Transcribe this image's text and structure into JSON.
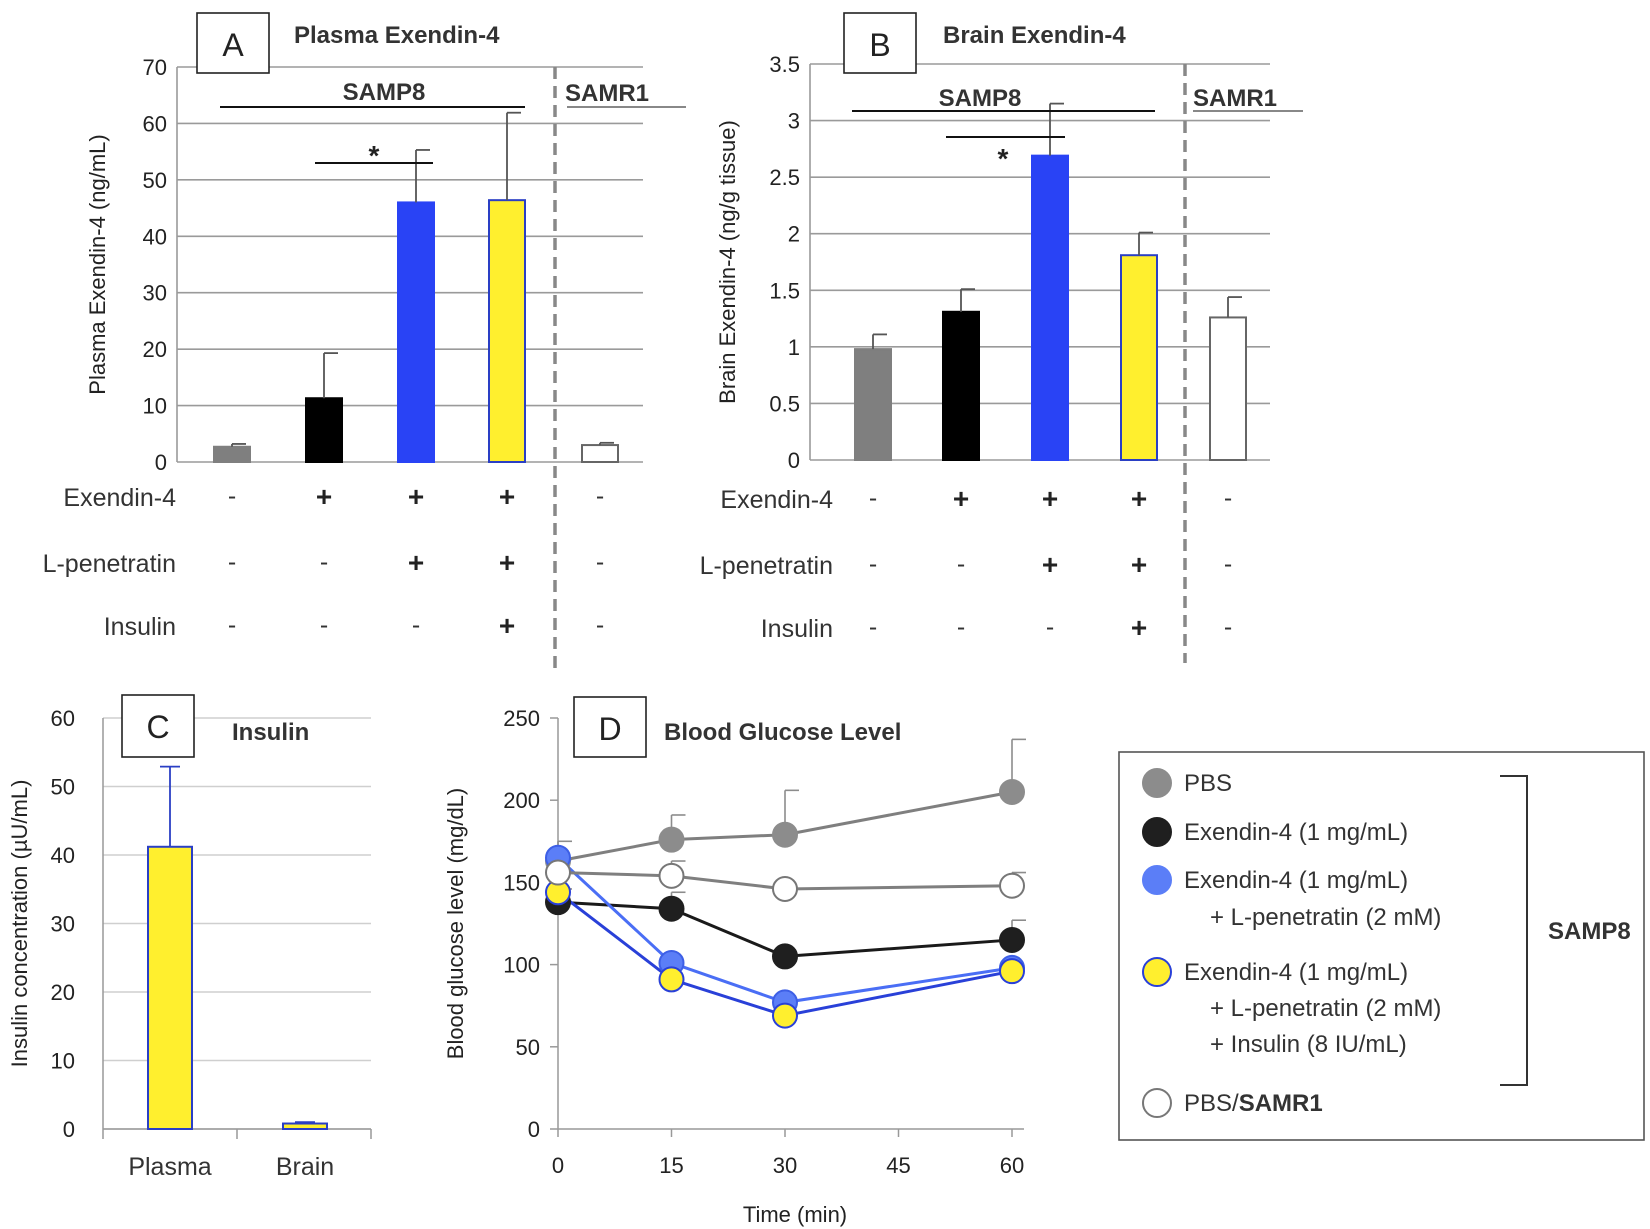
{
  "chart_data": [
    {
      "panel": "A",
      "type": "bar",
      "title": "Plasma Exendin-4",
      "ylabel": "Plasma Exendin-4 (ng/mL)",
      "ylim": [
        0,
        70
      ],
      "yticks": [
        "0",
        "10",
        "20",
        "30",
        "40",
        "50",
        "60",
        "70"
      ],
      "values": [
        2.7,
        11.3,
        46.0,
        46.4,
        3.0
      ],
      "errors": [
        0.5,
        8.0,
        9.3,
        15.5,
        0.4
      ],
      "colors": [
        "#7f7f7f",
        "#000000",
        "#2943f5",
        "#ffef2e",
        "#ffffff"
      ],
      "edge_colors": [
        "#7f7f7f",
        "#000000",
        "#2943f5",
        "#2a3fc4",
        "#666666"
      ],
      "rows": [
        {
          "label": "Exendin-4",
          "signs": [
            "-",
            "+",
            "+",
            "+",
            "-"
          ]
        },
        {
          "label": "L-penetratin",
          "signs": [
            "-",
            "-",
            "+",
            "+",
            "-"
          ]
        },
        {
          "label": "Insulin",
          "signs": [
            "-",
            "-",
            "-",
            "+",
            "-"
          ]
        }
      ],
      "group_labels": [
        "SAMP8",
        "SAMR1"
      ],
      "significance": "*"
    },
    {
      "panel": "B",
      "type": "bar",
      "title": "Brain Exendin-4",
      "ylabel": "Brain Exendin-4 (ng/g tissue)",
      "ylim": [
        0,
        3.5
      ],
      "yticks": [
        "0",
        "0.5",
        "1",
        "1.5",
        "2",
        "2.5",
        "3",
        "3.5"
      ],
      "values": [
        0.98,
        1.31,
        2.69,
        1.81,
        1.26
      ],
      "errors": [
        0.13,
        0.2,
        0.46,
        0.2,
        0.18
      ],
      "colors": [
        "#7f7f7f",
        "#000000",
        "#2943f5",
        "#ffef2e",
        "#ffffff"
      ],
      "edge_colors": [
        "#7f7f7f",
        "#000000",
        "#2943f5",
        "#2a3fc4",
        "#666666"
      ],
      "rows": [
        {
          "label": "Exendin-4",
          "signs": [
            "-",
            "+",
            "+",
            "+",
            "-"
          ]
        },
        {
          "label": "L-penetratin",
          "signs": [
            "-",
            "-",
            "+",
            "+",
            "-"
          ]
        },
        {
          "label": "Insulin",
          "signs": [
            "-",
            "-",
            "-",
            "+",
            "-"
          ]
        }
      ],
      "group_labels": [
        "SAMP8",
        "SAMR1"
      ],
      "significance": "*"
    },
    {
      "panel": "C",
      "type": "bar",
      "title": "Insulin",
      "ylabel": "Insulin concentration (µU/mL)",
      "ylim": [
        0,
        60
      ],
      "yticks": [
        "0",
        "10",
        "20",
        "30",
        "40",
        "50",
        "60"
      ],
      "categories": [
        "Plasma",
        "Brain"
      ],
      "values": [
        41.2,
        0.8
      ],
      "errors": [
        11.7,
        0.2
      ]
    },
    {
      "panel": "D",
      "type": "line",
      "title": "Blood Glucose Level",
      "xlabel": "Time (min)",
      "ylabel": "Blood glucose level (mg/dL)",
      "xlim": [
        0,
        60
      ],
      "ylim": [
        0,
        250
      ],
      "xticks": [
        "0",
        "15",
        "30",
        "45",
        "60"
      ],
      "yticks": [
        "0",
        "50",
        "100",
        "150",
        "200",
        "250"
      ],
      "series": [
        {
          "name": "PBS",
          "x": [
            0,
            15,
            30,
            60
          ],
          "y": [
            163,
            176,
            179,
            205
          ],
          "err": [
            12,
            15,
            27,
            32
          ],
          "line": "#7f7f7f",
          "fill": "#8c8c8c",
          "edge": "#8c8c8c"
        },
        {
          "name": "Exendin-4 (1 mg/mL)",
          "x": [
            0,
            15,
            30,
            60
          ],
          "y": [
            138,
            134,
            105,
            115
          ],
          "err": [
            8,
            10,
            0,
            12
          ],
          "line": "#1a1a1a",
          "fill": "#1f1f1f",
          "edge": "#1f1f1f"
        },
        {
          "name": "Exendin-4 (1 mg/mL) + L-penetratin (2 mM)",
          "x": [
            0,
            15,
            30,
            60
          ],
          "y": [
            165,
            101,
            77,
            98
          ],
          "err": [
            0,
            0,
            0,
            0
          ],
          "line": "#4a6ef5",
          "fill": "#5b7ef7",
          "edge": "#3d5fe6"
        },
        {
          "name": "Exendin-4 (1 mg/mL) + L-penetratin (2 mM) + Insulin (8 IU/mL)",
          "x": [
            0,
            15,
            30,
            60
          ],
          "y": [
            144,
            91,
            69,
            96
          ],
          "err": [
            0,
            0,
            0,
            0
          ],
          "line": "#2940d8",
          "fill": "#ffef2e",
          "edge": "#2940d8"
        },
        {
          "name": "PBS/SAMR1",
          "x": [
            0,
            15,
            30,
            60
          ],
          "y": [
            156,
            154,
            146,
            148
          ],
          "err": [
            8,
            9,
            0,
            8
          ],
          "line": "#7f7f7f",
          "fill": "#ffffff",
          "edge": "#777777"
        }
      ]
    }
  ],
  "legend": {
    "items": [
      {
        "lines": [
          "PBS"
        ],
        "bold": "",
        "fill": "#8c8c8c",
        "edge": "#8c8c8c"
      },
      {
        "lines": [
          "Exendin-4 (1 mg/mL)"
        ],
        "bold": "",
        "fill": "#1f1f1f",
        "edge": "#1f1f1f"
      },
      {
        "lines": [
          "Exendin-4 (1 mg/mL)",
          "+ L-penetratin (2 mM)"
        ],
        "bold": "",
        "fill": "#5b7ef7",
        "edge": "#5b7ef7"
      },
      {
        "lines": [
          "Exendin-4 (1 mg/mL)",
          "+ L-penetratin (2 mM)",
          "+ Insulin (8 IU/mL)"
        ],
        "bold": "",
        "fill": "#ffef2e",
        "edge": "#2940d8"
      },
      {
        "lines": [
          "PBS/"
        ],
        "bold": "SAMR1",
        "fill": "#ffffff",
        "edge": "#777777"
      }
    ],
    "bracket_label": "SAMP8"
  }
}
